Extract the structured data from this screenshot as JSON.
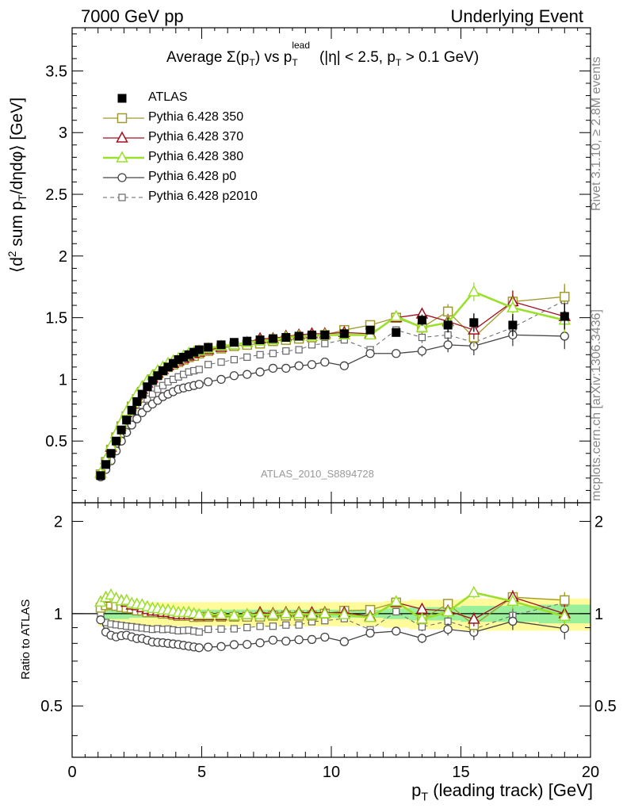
{
  "header": {
    "left": "7000 GeV pp",
    "right": "Underlying Event"
  },
  "side_labels": {
    "rivet": "Rivet 3.1.10, ≥ 2.8M events",
    "mcplots": "mcplots.cern.ch [arXiv:1306.3436]"
  },
  "analysis_tag": "ATLAS_2010_S8894728",
  "colors": {
    "atlas": "#000000",
    "p350": "#a09a2a",
    "p370": "#a01020",
    "p380": "#9ae02a",
    "p0": "#444444",
    "p2010": "#666666",
    "band_outer": "#fffa9a",
    "band_inner": "#9af09a"
  },
  "chart_data": [
    {
      "type": "scatter",
      "title": "Average Σ(pT) vs pT^lead (|η| < 2.5, pT > 0.1 GeV)",
      "title_parts": {
        "main": "Average Σ(p",
        "sub1": "T",
        "mid": ") vs p",
        "sup2": "lead",
        "sub2": "T",
        "tail": " (|η| < 2.5, p",
        "sub3": "T",
        "end": " > 0.1 GeV)"
      },
      "ylabel": "⟨d² sum pT/dηdφ⟩ [GeV]",
      "ylabel_parts": {
        "a": "⟨d",
        "sup": "2",
        "b": " sum p",
        "sub": "T",
        "c": "/dηdφ⟩ [GeV]"
      },
      "xlim": [
        0,
        20
      ],
      "ylim": [
        0,
        3.85
      ],
      "y_ticks": [
        "0.5",
        "1",
        "1.5",
        "2",
        "2.5",
        "3",
        "3.5"
      ],
      "y_tick_values": [
        0.5,
        1,
        1.5,
        2,
        2.5,
        3,
        3.5
      ],
      "legend_position": "top-left",
      "series": [
        {
          "name": "ATLAS",
          "key": "atlas",
          "marker": "filled-square",
          "line": "none",
          "x": [
            1.1,
            1.3,
            1.5,
            1.7,
            1.9,
            2.1,
            2.3,
            2.5,
            2.7,
            2.9,
            3.1,
            3.3,
            3.5,
            3.7,
            3.9,
            4.1,
            4.3,
            4.5,
            4.7,
            4.9,
            5.25,
            5.75,
            6.25,
            6.75,
            7.25,
            7.75,
            8.25,
            8.75,
            9.25,
            9.75,
            10.5,
            11.5,
            12.5,
            13.5,
            14.5,
            15.5,
            17.0,
            19.0
          ],
          "y": [
            0.22,
            0.31,
            0.4,
            0.5,
            0.59,
            0.67,
            0.75,
            0.82,
            0.88,
            0.94,
            0.99,
            1.03,
            1.07,
            1.1,
            1.13,
            1.16,
            1.18,
            1.2,
            1.22,
            1.24,
            1.26,
            1.28,
            1.3,
            1.31,
            1.32,
            1.33,
            1.34,
            1.35,
            1.36,
            1.36,
            1.37,
            1.4,
            1.38,
            1.48,
            1.44,
            1.46,
            1.44,
            1.51
          ]
        },
        {
          "name": "Pythia 6.428 350",
          "key": "p350",
          "marker": "open-square",
          "line": "solid",
          "x": [
            1.1,
            1.3,
            1.5,
            1.7,
            1.9,
            2.1,
            2.3,
            2.5,
            2.7,
            2.9,
            3.1,
            3.3,
            3.5,
            3.7,
            3.9,
            4.1,
            4.3,
            4.5,
            4.7,
            4.9,
            5.25,
            5.75,
            6.25,
            6.75,
            7.25,
            7.75,
            8.25,
            8.75,
            9.25,
            9.75,
            10.5,
            11.5,
            12.5,
            13.5,
            14.5,
            15.5,
            17.0,
            19.0
          ],
          "y": [
            0.23,
            0.33,
            0.43,
            0.53,
            0.62,
            0.7,
            0.78,
            0.84,
            0.9,
            0.95,
            1.0,
            1.04,
            1.07,
            1.1,
            1.12,
            1.14,
            1.16,
            1.18,
            1.19,
            1.21,
            1.23,
            1.25,
            1.27,
            1.28,
            1.29,
            1.31,
            1.32,
            1.33,
            1.34,
            1.36,
            1.4,
            1.44,
            1.5,
            1.42,
            1.55,
            1.34,
            1.63,
            1.67
          ]
        },
        {
          "name": "Pythia 6.428 370",
          "key": "p370",
          "marker": "open-triangle",
          "line": "solid",
          "x": [
            1.1,
            1.3,
            1.5,
            1.7,
            1.9,
            2.1,
            2.3,
            2.5,
            2.7,
            2.9,
            3.1,
            3.3,
            3.5,
            3.7,
            3.9,
            4.1,
            4.3,
            4.5,
            4.7,
            4.9,
            5.25,
            5.75,
            6.25,
            6.75,
            7.25,
            7.75,
            8.25,
            8.75,
            9.25,
            9.75,
            10.5,
            11.5,
            12.5,
            13.5,
            14.5,
            15.5,
            17.0,
            19.0
          ],
          "y": [
            0.24,
            0.35,
            0.45,
            0.56,
            0.65,
            0.73,
            0.8,
            0.87,
            0.92,
            0.97,
            1.01,
            1.05,
            1.08,
            1.11,
            1.13,
            1.15,
            1.17,
            1.19,
            1.21,
            1.22,
            1.24,
            1.26,
            1.28,
            1.3,
            1.33,
            1.33,
            1.35,
            1.36,
            1.37,
            1.37,
            1.38,
            1.37,
            1.5,
            1.53,
            1.47,
            1.4,
            1.63,
            1.51
          ]
        },
        {
          "name": "Pythia 6.428 380",
          "key": "p380",
          "marker": "open-triangle",
          "line": "solid-thick",
          "x": [
            1.1,
            1.3,
            1.5,
            1.7,
            1.9,
            2.1,
            2.3,
            2.5,
            2.7,
            2.9,
            3.1,
            3.3,
            3.5,
            3.7,
            3.9,
            4.1,
            4.3,
            4.5,
            4.7,
            4.9,
            5.25,
            5.75,
            6.25,
            6.75,
            7.25,
            7.75,
            8.25,
            8.75,
            9.25,
            9.75,
            10.5,
            11.5,
            12.5,
            13.5,
            14.5,
            15.5,
            17.0,
            19.0
          ],
          "y": [
            0.24,
            0.35,
            0.46,
            0.56,
            0.65,
            0.74,
            0.81,
            0.88,
            0.94,
            0.99,
            1.03,
            1.07,
            1.1,
            1.13,
            1.15,
            1.17,
            1.19,
            1.21,
            1.22,
            1.23,
            1.25,
            1.27,
            1.28,
            1.3,
            1.31,
            1.32,
            1.34,
            1.35,
            1.35,
            1.36,
            1.36,
            1.36,
            1.51,
            1.42,
            1.46,
            1.71,
            1.58,
            1.48
          ]
        },
        {
          "name": "Pythia 6.428 p0",
          "key": "p0",
          "marker": "open-circle",
          "line": "solid",
          "x": [
            1.1,
            1.3,
            1.5,
            1.7,
            1.9,
            2.1,
            2.3,
            2.5,
            2.7,
            2.9,
            3.1,
            3.3,
            3.5,
            3.7,
            3.9,
            4.1,
            4.3,
            4.5,
            4.7,
            4.9,
            5.25,
            5.75,
            6.25,
            6.75,
            7.25,
            7.75,
            8.25,
            8.75,
            9.25,
            9.75,
            10.5,
            11.5,
            12.5,
            13.5,
            14.5,
            15.5,
            17.0,
            19.0
          ],
          "y": [
            0.21,
            0.27,
            0.34,
            0.42,
            0.5,
            0.57,
            0.63,
            0.68,
            0.73,
            0.77,
            0.8,
            0.83,
            0.86,
            0.88,
            0.9,
            0.92,
            0.93,
            0.94,
            0.95,
            0.96,
            0.98,
            1.0,
            1.03,
            1.04,
            1.06,
            1.09,
            1.09,
            1.11,
            1.12,
            1.14,
            1.11,
            1.21,
            1.21,
            1.23,
            1.28,
            1.27,
            1.36,
            1.35
          ]
        },
        {
          "name": "Pythia 6.428 p2010",
          "key": "p2010",
          "marker": "open-square-small",
          "line": "dashed",
          "x": [
            1.1,
            1.3,
            1.5,
            1.7,
            1.9,
            2.1,
            2.3,
            2.5,
            2.7,
            2.9,
            3.1,
            3.3,
            3.5,
            3.7,
            3.9,
            4.1,
            4.3,
            4.5,
            4.7,
            4.9,
            5.25,
            5.75,
            6.25,
            6.75,
            7.25,
            7.75,
            8.25,
            8.75,
            9.25,
            9.75,
            10.5,
            11.5,
            12.5,
            13.5,
            14.5,
            15.5,
            17.0,
            19.0
          ],
          "y": [
            0.22,
            0.29,
            0.37,
            0.46,
            0.54,
            0.61,
            0.68,
            0.74,
            0.79,
            0.84,
            0.88,
            0.92,
            0.95,
            0.98,
            1.0,
            1.02,
            1.04,
            1.06,
            1.07,
            1.08,
            1.12,
            1.14,
            1.16,
            1.18,
            1.2,
            1.21,
            1.23,
            1.24,
            1.28,
            1.29,
            1.32,
            1.24,
            1.4,
            1.34,
            1.36,
            1.3,
            1.42,
            1.64
          ]
        }
      ]
    },
    {
      "type": "scatter",
      "ylabel": "Ratio to ATLAS",
      "xlabel": "pT (leading track) [GeV]",
      "xlabel_parts": {
        "a": "p",
        "sub": "T",
        "b": " (leading track) [GeV]"
      },
      "xlim": [
        0,
        20
      ],
      "ylim": [
        0.34,
        2.3
      ],
      "x_ticks": [
        "0",
        "5",
        "10",
        "15",
        "20"
      ],
      "x_tick_values": [
        0,
        5,
        10,
        15,
        20
      ],
      "y_ticks": [
        "0.5",
        "1",
        "2"
      ],
      "y_tick_values": [
        0.5,
        1,
        2
      ],
      "band": {
        "x_edges": [
          1.0,
          1.2,
          1.4,
          1.6,
          1.8,
          2.0,
          2.2,
          2.4,
          2.6,
          2.8,
          3.0,
          3.2,
          3.4,
          3.6,
          3.8,
          4.0,
          4.2,
          4.4,
          4.6,
          4.8,
          5.0,
          5.5,
          6.0,
          6.5,
          7.0,
          7.5,
          8.0,
          8.5,
          9.0,
          9.5,
          10.0,
          11.0,
          12.0,
          13.0,
          14.0,
          15.0,
          16.0,
          18.0,
          20.0
        ],
        "outer_half_width": [
          0.09,
          0.09,
          0.09,
          0.09,
          0.09,
          0.09,
          0.09,
          0.09,
          0.09,
          0.09,
          0.09,
          0.09,
          0.09,
          0.09,
          0.09,
          0.09,
          0.09,
          0.09,
          0.09,
          0.09,
          0.09,
          0.09,
          0.09,
          0.09,
          0.09,
          0.09,
          0.09,
          0.09,
          0.09,
          0.09,
          0.09,
          0.09,
          0.1,
          0.11,
          0.11,
          0.12,
          0.12,
          0.12
        ],
        "inner_half_width": [
          0.05,
          0.05,
          0.04,
          0.04,
          0.04,
          0.04,
          0.03,
          0.03,
          0.03,
          0.03,
          0.03,
          0.03,
          0.03,
          0.03,
          0.03,
          0.03,
          0.03,
          0.03,
          0.03,
          0.03,
          0.03,
          0.03,
          0.03,
          0.03,
          0.03,
          0.03,
          0.03,
          0.03,
          0.03,
          0.03,
          0.03,
          0.03,
          0.04,
          0.05,
          0.05,
          0.06,
          0.06,
          0.07
        ]
      }
    }
  ]
}
